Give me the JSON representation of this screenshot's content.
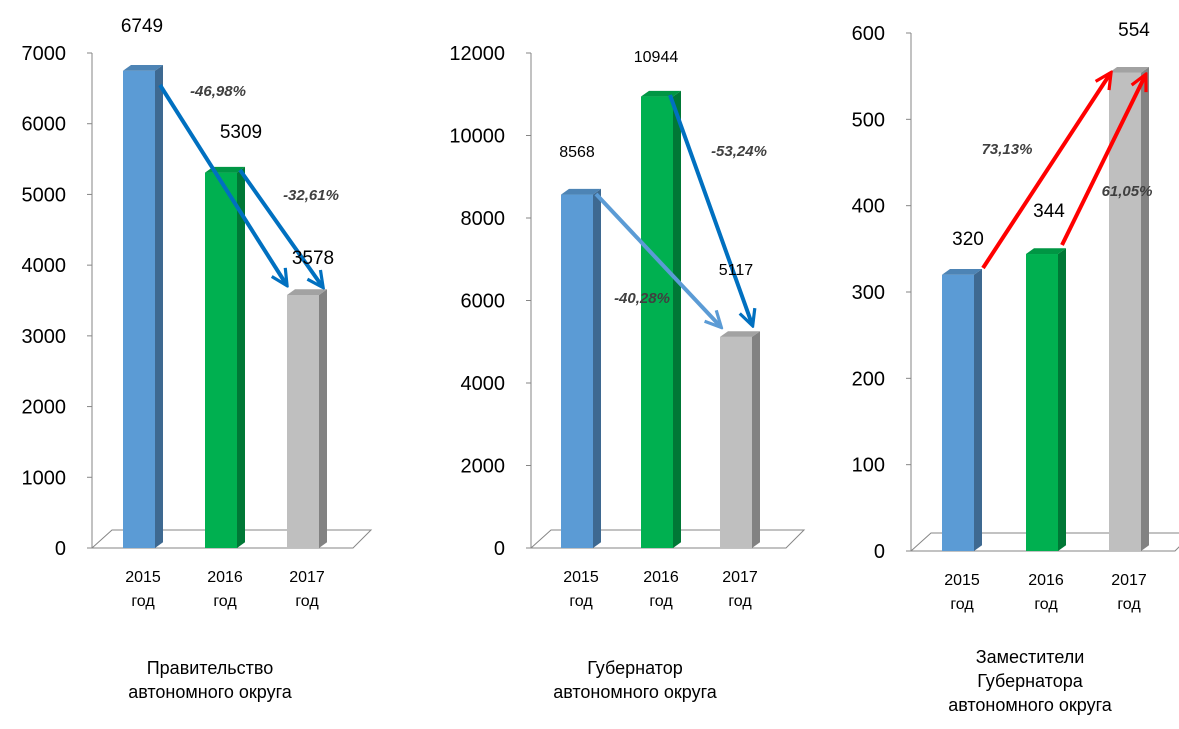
{
  "chart_data": [
    {
      "type": "bar",
      "title": "Правительство автономного округа",
      "title_lines": [
        "Правительство",
        "автономного округа"
      ],
      "categories": [
        [
          "2015",
          "год"
        ],
        [
          "2016",
          "год"
        ],
        [
          "2017",
          "год"
        ]
      ],
      "values": [
        6749,
        5309,
        3578
      ],
      "value_labels": [
        "6749",
        "5309",
        "3578"
      ],
      "ylim": [
        0,
        7000
      ],
      "yticks": [
        "0",
        "1000",
        "2000",
        "3000",
        "4000",
        "5000",
        "6000",
        "7000"
      ],
      "bar_colors": [
        "#5b9bd5",
        "#00b050",
        "#bfbfbf"
      ],
      "grid": false,
      "annotations": [
        {
          "text": "-46,98%",
          "from": 0,
          "to": 2,
          "color": "#0070c0"
        },
        {
          "text": "-32,61%",
          "from": 1,
          "to": 2,
          "color": "#0070c0"
        }
      ]
    },
    {
      "type": "bar",
      "title": "Губернатор автономного округа",
      "title_lines": [
        "Губернатор",
        "автономного округа"
      ],
      "categories": [
        [
          "2015",
          "год"
        ],
        [
          "2016",
          "год"
        ],
        [
          "2017",
          "год"
        ]
      ],
      "values": [
        8568,
        10944,
        5117
      ],
      "value_labels": [
        "8568",
        "10944",
        "5117"
      ],
      "ylim": [
        0,
        12000
      ],
      "yticks": [
        "0",
        "2000",
        "4000",
        "6000",
        "8000",
        "10000",
        "12000"
      ],
      "bar_colors": [
        "#5b9bd5",
        "#00b050",
        "#bfbfbf"
      ],
      "grid": false,
      "annotations": [
        {
          "text": "-40,28%",
          "from": 0,
          "to": 2,
          "color": "#5b9bd5"
        },
        {
          "text": "-53,24%",
          "from": 1,
          "to": 2,
          "color": "#0070c0"
        }
      ]
    },
    {
      "type": "bar",
      "title": "Заместители Губернатора автономного округа",
      "title_lines": [
        "Заместители",
        "Губернатора",
        "автономного округа"
      ],
      "categories": [
        [
          "2015",
          "год"
        ],
        [
          "2016",
          "год"
        ],
        [
          "2017",
          "год"
        ]
      ],
      "values": [
        320,
        344,
        554
      ],
      "value_labels": [
        "320",
        "344",
        "554"
      ],
      "ylim": [
        0,
        600
      ],
      "yticks": [
        "0",
        "100",
        "200",
        "300",
        "400",
        "500",
        "600"
      ],
      "bar_colors": [
        "#5b9bd5",
        "#00b050",
        "#bfbfbf"
      ],
      "grid": false,
      "annotations": [
        {
          "text": "73,13%",
          "from": 0,
          "to": 2,
          "color": "#ff0000"
        },
        {
          "text": "61,05%",
          "from": 1,
          "to": 2,
          "color": "#ff0000"
        }
      ]
    }
  ]
}
